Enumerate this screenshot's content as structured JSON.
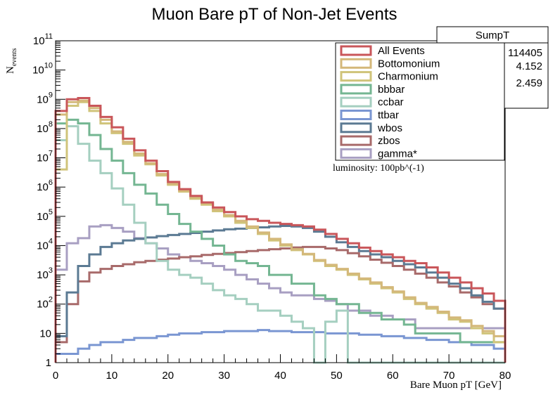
{
  "chart_data": {
    "type": "line",
    "title": "Muon Bare pT of Non-Jet Events",
    "xlabel": "Bare Muon pT [GeV]",
    "ylabel_main": "N",
    "ylabel_sub": "events",
    "xlim": [
      0,
      80
    ],
    "ylim": [
      1,
      100000000000
    ],
    "yscale": "log",
    "x_ticks": [
      "0",
      "10",
      "20",
      "30",
      "40",
      "50",
      "60",
      "70",
      "80"
    ],
    "y_ticks": [
      {
        "v": 1,
        "base": "1",
        "exp": ""
      },
      {
        "v": 10,
        "base": "10",
        "exp": ""
      },
      {
        "v": 100,
        "base": "10",
        "exp": "2"
      },
      {
        "v": 1000,
        "base": "10",
        "exp": "3"
      },
      {
        "v": 10000,
        "base": "10",
        "exp": "4"
      },
      {
        "v": 100000,
        "base": "10",
        "exp": "5"
      },
      {
        "v": 1000000,
        "base": "10",
        "exp": "6"
      },
      {
        "v": 10000000,
        "base": "10",
        "exp": "7"
      },
      {
        "v": 100000000,
        "base": "10",
        "exp": "8"
      },
      {
        "v": 1000000000,
        "base": "10",
        "exp": "9"
      },
      {
        "v": 10000000000,
        "base": "10",
        "exp": "10"
      },
      {
        "v": 100000000000,
        "base": "10",
        "exp": "11"
      }
    ],
    "bin_width": 2,
    "bin_edges_start": 0,
    "legend_position": "top-right",
    "series": [
      {
        "name": "gamma*",
        "color": "#a89fc2",
        "values": [
          1500,
          12000,
          18000,
          45000,
          50000,
          40000,
          30000,
          18000,
          12000,
          8000,
          5000,
          4000,
          3000,
          2500,
          2000,
          1500,
          1000,
          700,
          500,
          350,
          250,
          200,
          200,
          150,
          130,
          100,
          60,
          60,
          40,
          40,
          30,
          30,
          15,
          15,
          15,
          15,
          15,
          15,
          15,
          15
        ]
      },
      {
        "name": "zbos",
        "color": "#a86a6a",
        "values": [
          5,
          100,
          600,
          1200,
          1600,
          2000,
          2300,
          2700,
          3000,
          3300,
          3600,
          4000,
          4300,
          4800,
          5200,
          5600,
          6000,
          6500,
          7000,
          7500,
          8000,
          8600,
          9000,
          9000,
          8000,
          7000,
          5500,
          4300,
          3300,
          2600,
          2000,
          1500,
          1100,
          800,
          550,
          400,
          250,
          170,
          100,
          70
        ]
      },
      {
        "name": "wbos",
        "color": "#5b7a93",
        "values": [
          8,
          250,
          2000,
          5000,
          9000,
          12000,
          15000,
          17000,
          19000,
          21000,
          23000,
          25000,
          27000,
          30000,
          33000,
          36000,
          38000,
          40000,
          42000,
          45000,
          47000,
          45000,
          40000,
          30000,
          20000,
          13000,
          9000,
          6500,
          5000,
          4000,
          3000,
          2300,
          1800,
          1200,
          800,
          500,
          350,
          200,
          120,
          70
        ]
      },
      {
        "name": "ttbar",
        "color": "#7a96d2",
        "values": [
          2,
          2,
          3,
          4,
          5,
          5,
          6,
          7,
          7,
          8,
          9,
          10,
          10,
          11,
          11,
          12,
          12,
          12,
          13,
          12,
          12,
          11,
          11,
          11,
          10,
          10,
          10,
          9,
          9,
          8,
          8,
          7,
          7,
          6,
          6,
          5,
          5,
          4,
          4,
          3
        ]
      },
      {
        "name": "ccbar",
        "color": "#a5cfc0",
        "values": [
          40000000,
          120000000,
          30000000,
          8000000,
          3000000,
          900000,
          250000,
          60000,
          12000,
          3000,
          1500,
          1000,
          800,
          500,
          300,
          200,
          150,
          100,
          60,
          60,
          40,
          25,
          15,
          1,
          25,
          60,
          1,
          1,
          1,
          1,
          1,
          1,
          1,
          1,
          1,
          1,
          1,
          1,
          1,
          1
        ]
      },
      {
        "name": "bbbar",
        "color": "#74b692",
        "values": [
          150000000,
          200000000,
          150000000,
          60000000,
          20000000,
          8000000,
          3000000,
          1200000,
          600000,
          250000,
          120000,
          55000,
          30000,
          17000,
          10000,
          5000,
          3000,
          2500,
          2000,
          1000,
          1000,
          500,
          500,
          200,
          150,
          100,
          100,
          50,
          50,
          30,
          30,
          20,
          10,
          10,
          10,
          10,
          5,
          5,
          5,
          5
        ]
      },
      {
        "name": "Charmonium",
        "color": "#d0c47a",
        "values": [
          4000000,
          600000000,
          800000000,
          400000000,
          150000000,
          70000000,
          30000000,
          12000000,
          6000000,
          2500000,
          1200000,
          700000,
          400000,
          250000,
          150000,
          100000,
          60000,
          40000,
          25000,
          15000,
          10000,
          7000,
          5000,
          3000,
          2000,
          1500,
          1000,
          700,
          500,
          350,
          250,
          150,
          100,
          70,
          50,
          30,
          25,
          15,
          10,
          5
        ]
      },
      {
        "name": "Bottomonium",
        "color": "#d4b87a",
        "values": [
          300000000,
          800000000,
          900000000,
          500000000,
          200000000,
          80000000,
          35000000,
          14000000,
          6500000,
          2800000,
          1300000,
          750000,
          450000,
          280000,
          170000,
          110000,
          70000,
          45000,
          28000,
          17000,
          11000,
          7500,
          5200,
          3200,
          2200,
          1600,
          1100,
          750,
          550,
          380,
          270,
          170,
          110,
          80,
          55,
          35,
          28,
          18,
          12,
          8
        ]
      },
      {
        "name": "All Events",
        "color": "#c9565a",
        "values": [
          400000000,
          1000000000,
          1100000000,
          600000000,
          250000000,
          110000000,
          45000000,
          18000000,
          8000000,
          3500000,
          1500000,
          850000,
          500000,
          300000,
          200000,
          140000,
          100000,
          80000,
          70000,
          60000,
          55000,
          50000,
          45000,
          35000,
          25000,
          17000,
          12000,
          8500,
          6500,
          5000,
          4000,
          3000,
          2500,
          1800,
          1200,
          800,
          550,
          350,
          230,
          130
        ]
      }
    ],
    "legend": [
      "All Events",
      "Bottomonium",
      "Charmonium",
      "bbbar",
      "ccbar",
      "ttbar",
      "wbos",
      "zbos",
      "gamma*"
    ],
    "legend_colors": [
      "#c9565a",
      "#d4b87a",
      "#d0c47a",
      "#74b692",
      "#a5cfc0",
      "#7a96d2",
      "#5b7a93",
      "#a86a6a",
      "#a89fc2"
    ],
    "stats_title": "SumpT",
    "stats_values": [
      "114405",
      "4.152",
      "2.459"
    ],
    "annotation": "luminosity: 100pb^(-1)"
  }
}
